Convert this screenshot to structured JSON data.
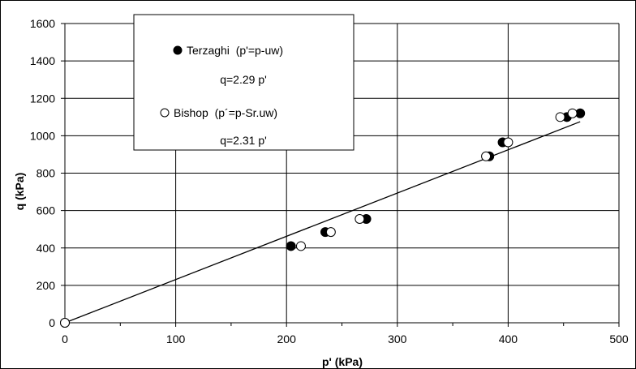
{
  "chart_data": {
    "type": "scatter",
    "xlabel": "p'  (kPa)",
    "ylabel": "q (kPa)",
    "xlim": [
      0,
      500
    ],
    "ylim": [
      0,
      1600
    ],
    "xticks": [
      0,
      100,
      200,
      300,
      400,
      500
    ],
    "yticks": [
      0,
      200,
      400,
      600,
      800,
      1000,
      1200,
      1400,
      1600
    ],
    "grid": true,
    "legend_position": "top-center",
    "series": [
      {
        "name": "Terzaghi  (p'=p-uw)",
        "marker": "filled-circle",
        "color": "#000000",
        "equation": "q=2.29 p'",
        "x": [
          0,
          204,
          235,
          272,
          383,
          395,
          453,
          465
        ],
        "y": [
          0,
          410,
          485,
          555,
          890,
          965,
          1100,
          1120
        ]
      },
      {
        "name": "Bishop  (p´=p-Sr.uw)",
        "marker": "open-circle",
        "color": "#000000",
        "equation": "q=2.31 p'",
        "x": [
          0,
          213,
          240,
          266,
          380,
          400,
          447,
          458
        ],
        "y": [
          0,
          410,
          485,
          555,
          890,
          965,
          1100,
          1120
        ]
      }
    ],
    "fit_line": {
      "x": [
        0,
        465
      ],
      "y": [
        0,
        1075
      ]
    }
  }
}
